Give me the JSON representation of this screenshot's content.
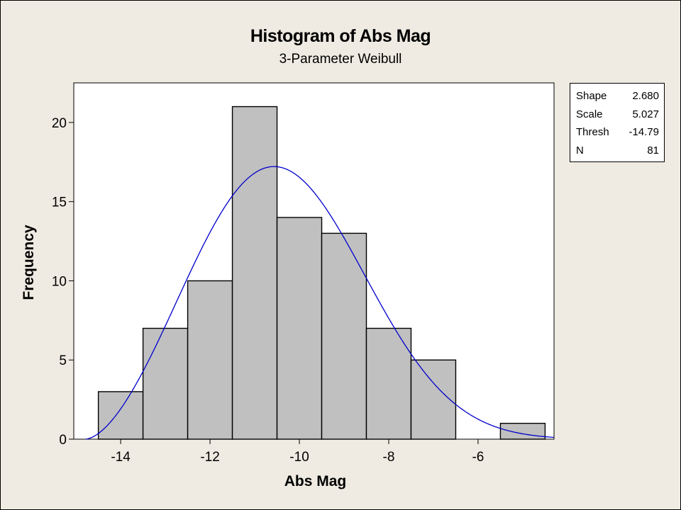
{
  "chart_data": {
    "type": "bar",
    "title": "Histogram of Abs Mag",
    "subtitle": "3-Parameter Weibull",
    "xlabel": "Abs Mag",
    "ylabel": "Frequency",
    "xlim": [
      -15.05,
      -4.3
    ],
    "ylim": [
      0,
      22.5
    ],
    "xticks": [
      -14,
      -12,
      -10,
      -8,
      -6
    ],
    "yticks": [
      0,
      5,
      10,
      15,
      20
    ],
    "bin_width": 1,
    "bins": [
      {
        "center": -14,
        "count": 3
      },
      {
        "center": -13,
        "count": 7
      },
      {
        "center": -12,
        "count": 10
      },
      {
        "center": -11,
        "count": 21
      },
      {
        "center": -10,
        "count": 14
      },
      {
        "center": -9,
        "count": 13
      },
      {
        "center": -8,
        "count": 7
      },
      {
        "center": -7,
        "count": 5
      },
      {
        "center": -6,
        "count": 0
      },
      {
        "center": -5,
        "count": 1
      }
    ],
    "fit": {
      "distribution": "3-Parameter Weibull",
      "shape": 2.68,
      "scale": 5.027,
      "thresh": -14.79,
      "n": 81
    },
    "grid": false,
    "legend": "none",
    "colors": {
      "bar_fill": "#c0c0c0",
      "curve": "#0000cc",
      "background": "#efebe2",
      "plot_bg": "#ffffff"
    }
  },
  "stats_table": [
    {
      "label": "Shape",
      "value": "2.680"
    },
    {
      "label": "Scale",
      "value": "5.027"
    },
    {
      "label": "Thresh",
      "value": "-14.79"
    },
    {
      "label": "N",
      "value": "81"
    }
  ]
}
